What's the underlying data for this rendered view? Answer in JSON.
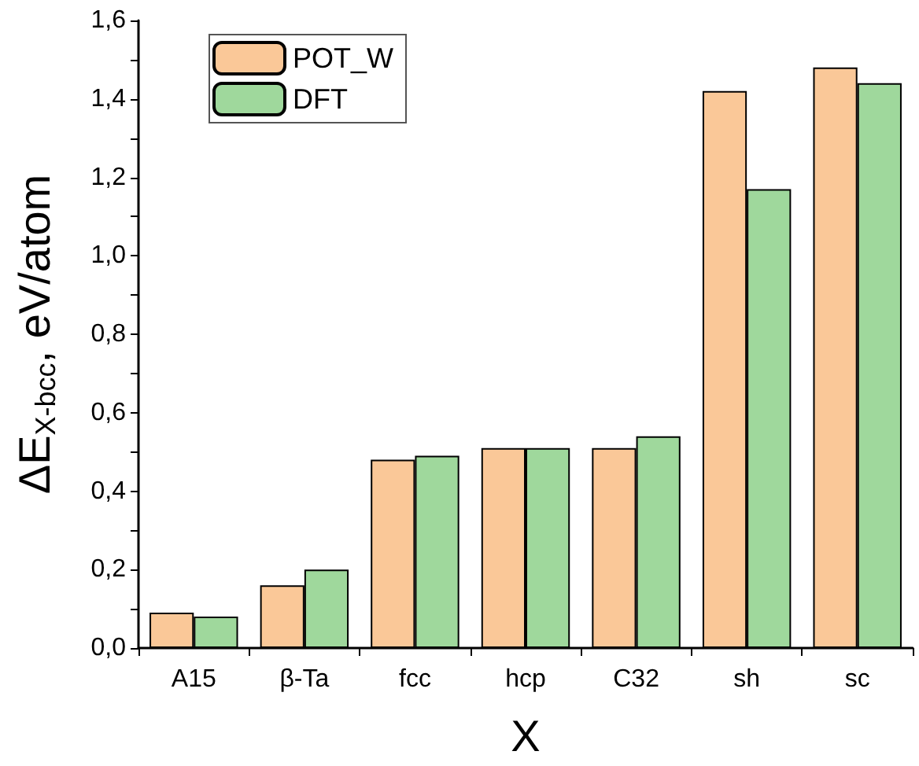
{
  "chart_data": {
    "type": "bar",
    "xlabel": "X",
    "ylabel": "ΔE$_{X-bcc}$, eV/atom",
    "categories": [
      "A15",
      "β-Ta",
      "fcc",
      "hcp",
      "C32",
      "sh",
      "sc"
    ],
    "series": [
      {
        "name": "POT_W",
        "color": "#fac898",
        "values": [
          0.09,
          0.16,
          0.48,
          0.51,
          0.51,
          1.42,
          1.48
        ]
      },
      {
        "name": "DFT",
        "color": "#9fd89c",
        "values": [
          0.08,
          0.2,
          0.49,
          0.51,
          0.54,
          1.17,
          1.44
        ]
      }
    ],
    "ylim": [
      0,
      1.6
    ],
    "yticks": [
      {
        "value": 0,
        "label": "0,0"
      },
      {
        "value": 0.1,
        "label": null
      },
      {
        "value": 0.2,
        "label": "0,2"
      },
      {
        "value": 0.3,
        "label": null
      },
      {
        "value": 0.4,
        "label": "0,4"
      },
      {
        "value": 0.5,
        "label": null
      },
      {
        "value": 0.6,
        "label": "0,6"
      },
      {
        "value": 0.7,
        "label": null
      },
      {
        "value": 0.8,
        "label": "0,8"
      },
      {
        "value": 0.9,
        "label": null
      },
      {
        "value": 1.0,
        "label": "1,0"
      },
      {
        "value": 1.1,
        "label": null
      },
      {
        "value": 1.2,
        "label": "1,2"
      },
      {
        "value": 1.3,
        "label": null
      },
      {
        "value": 1.4,
        "label": "1,4"
      },
      {
        "value": 1.5,
        "label": null
      },
      {
        "value": 1.6,
        "label": "1,6"
      }
    ],
    "grid": false,
    "legend": "top left"
  }
}
